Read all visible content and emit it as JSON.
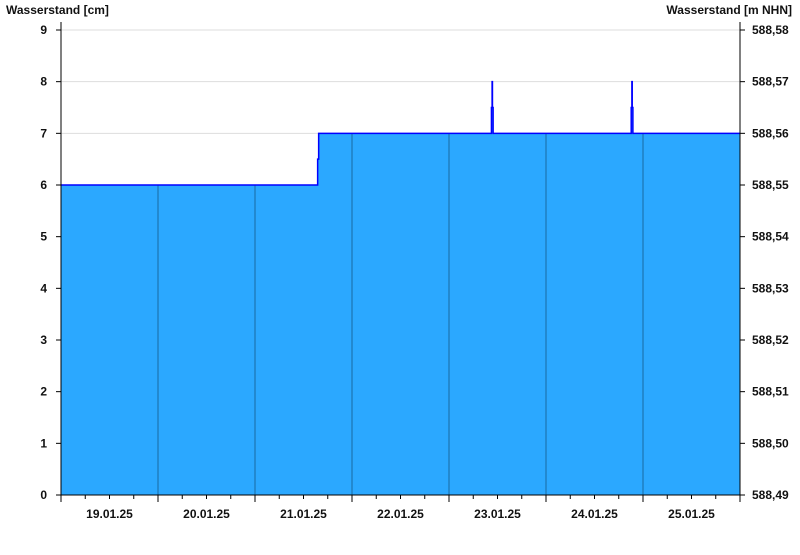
{
  "chart_data": {
    "type": "area",
    "step": true,
    "ylabel_left": "Wasserstand [cm]",
    "ylabel_right": "Wasserstand [m NHN]",
    "ylim": [
      0,
      9
    ],
    "yticks_left": [
      "0",
      "1",
      "2",
      "3",
      "4",
      "5",
      "6",
      "7",
      "8",
      "9"
    ],
    "yticks_right": [
      "588,49",
      "588,50",
      "588,51",
      "588,52",
      "588,53",
      "588,54",
      "588,55",
      "588,56",
      "588,57",
      "588,58"
    ],
    "xlim": [
      "2025-01-19T00:00",
      "2025-01-26T00:00"
    ],
    "xticks": [
      "19.01.25",
      "20.01.25",
      "21.01.25",
      "22.01.25",
      "23.01.25",
      "24.01.25",
      "25.01.25"
    ],
    "grid": true,
    "colors": {
      "fill": "#2ba8ff",
      "line": "#0000ff",
      "day_separator": "#1a6aa0",
      "grid": "#dddddd"
    },
    "series": [
      {
        "points": [
          [
            "2025-01-19T00:00",
            6
          ],
          [
            "2025-01-21T15:30",
            6.5
          ],
          [
            "2025-01-21T15:45",
            7
          ],
          [
            "2025-01-23T10:30",
            7.5
          ],
          [
            "2025-01-23T10:40",
            8
          ],
          [
            "2025-01-23T10:45",
            7.5
          ],
          [
            "2025-01-23T10:55",
            7
          ],
          [
            "2025-01-24T21:05",
            7.5
          ],
          [
            "2025-01-24T21:15",
            8
          ],
          [
            "2025-01-24T21:20",
            7.5
          ],
          [
            "2025-01-24T21:30",
            7
          ],
          [
            "2025-01-26T00:00",
            7
          ]
        ]
      }
    ]
  }
}
